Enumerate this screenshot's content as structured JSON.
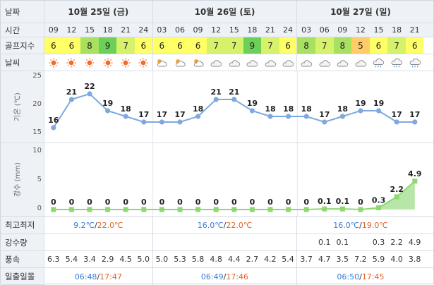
{
  "row_labels": {
    "date": "날짜",
    "time": "시간",
    "golf": "골프지수",
    "weather": "날씨",
    "temp_axis": "기온 (℃)",
    "rain_axis": "강수 (mm)",
    "minmax": "최고최저",
    "precip": "강수량",
    "wind": "풍속",
    "sun": "일출일몰"
  },
  "days": [
    "10월 25일 (금)",
    "10월 26일 (토)",
    "10월 27일 (일)"
  ],
  "times": [
    "09",
    "12",
    "15",
    "18",
    "21",
    "24",
    "03",
    "06",
    "09",
    "12",
    "15",
    "18",
    "21",
    "24",
    "03",
    "06",
    "09",
    "12",
    "15",
    "18",
    "21"
  ],
  "golf_scores": [
    6,
    6,
    8,
    9,
    7,
    6,
    6,
    6,
    6,
    7,
    7,
    9,
    7,
    6,
    8,
    7,
    8,
    5,
    6,
    7,
    6
  ],
  "golf_colors": {
    "5": "#ffcc66",
    "6": "#ffff66",
    "7": "#d6f26a",
    "8": "#a8e060",
    "9": "#6ccf57"
  },
  "weather_icons": [
    "sun-icon",
    "sun-icon",
    "sun-icon",
    "sun-icon",
    "sun-icon",
    "sun-icon",
    "partly-cloudy-icon",
    "partly-cloudy-icon",
    "partly-cloudy-icon",
    "cloud-icon",
    "cloud-icon",
    "cloud-icon",
    "cloud-icon",
    "cloud-icon",
    "cloud-icon",
    "cloud-icon",
    "cloud-icon",
    "cloud-icon",
    "rain-cloud-icon",
    "rain-cloud-icon",
    "rain-cloud-icon"
  ],
  "chart_data": [
    {
      "type": "line",
      "title": "",
      "ylabel": "기온 (℃)",
      "x": [
        "09",
        "12",
        "15",
        "18",
        "21",
        "24",
        "03",
        "06",
        "09",
        "12",
        "15",
        "18",
        "21",
        "24",
        "03",
        "06",
        "09",
        "12",
        "15",
        "18",
        "21"
      ],
      "values": [
        16,
        21,
        22,
        19,
        18,
        17,
        17,
        17,
        18,
        21,
        21,
        19,
        18,
        18,
        18,
        17,
        18,
        19,
        19,
        17,
        17
      ],
      "yticks": [
        15,
        20,
        25
      ],
      "ylim": [
        15,
        25
      ]
    },
    {
      "type": "area",
      "title": "",
      "ylabel": "강수 (mm)",
      "x": [
        "09",
        "12",
        "15",
        "18",
        "21",
        "24",
        "03",
        "06",
        "09",
        "12",
        "15",
        "18",
        "21",
        "24",
        "03",
        "06",
        "09",
        "12",
        "15",
        "18",
        "21"
      ],
      "values": [
        0,
        0,
        0,
        0,
        0,
        0,
        0,
        0,
        0,
        0,
        0,
        0,
        0,
        0,
        0,
        0.1,
        0.1,
        0,
        0.3,
        2.2,
        4.9
      ],
      "yticks": [
        0,
        5,
        10
      ],
      "ylim": [
        0,
        10
      ]
    }
  ],
  "minmax": [
    {
      "low": "9.2℃",
      "high": "22.0℃"
    },
    {
      "low": "16.0℃",
      "high": "22.0℃"
    },
    {
      "low": "16.0℃",
      "high": "19.0℃"
    }
  ],
  "minmax_sep": "/",
  "precip": [
    "",
    "",
    "",
    "",
    "",
    "",
    "",
    "",
    "",
    "",
    "",
    "",
    "",
    "",
    "",
    "0.1",
    "0.1",
    "",
    "0.3",
    "2.2",
    "4.9"
  ],
  "wind": [
    "6.3",
    "5.4",
    "3.4",
    "2.9",
    "4.5",
    "5.0",
    "5.0",
    "5.3",
    "5.8",
    "4.8",
    "4.4",
    "2.7",
    "4.2",
    "5.4",
    "3.7",
    "4.7",
    "3.5",
    "7.2",
    "5.9",
    "4.0",
    "3.8"
  ],
  "sun": [
    {
      "rise": "06:48",
      "set": "17:47"
    },
    {
      "rise": "06:49",
      "set": "17:46"
    },
    {
      "rise": "06:50",
      "set": "17:45"
    }
  ],
  "colors": {
    "line": "#7ea9de",
    "area": "#b8e6a8",
    "area_line": "#8fd870",
    "header_bg": "#eef2f7"
  }
}
